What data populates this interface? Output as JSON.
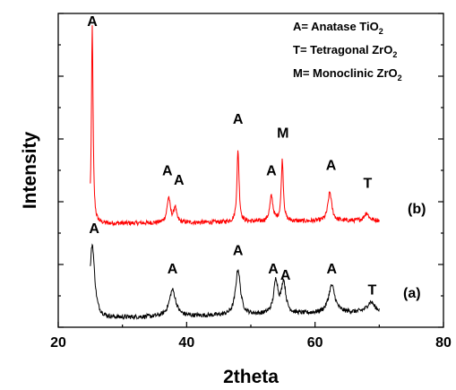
{
  "chart_data": {
    "type": "line",
    "xlabel": "2theta",
    "ylabel": "Intensity",
    "xlim": [
      20,
      80
    ],
    "ylim": [
      0,
      1000
    ],
    "x_ticks": [
      "20",
      "40",
      "60",
      "80"
    ],
    "grid": false,
    "legend_position": "top-right",
    "legend": [
      {
        "prefix": "A= Anatase TiO",
        "sub": "2"
      },
      {
        "prefix": "T= Tetragonal ZrO",
        "sub": "2"
      },
      {
        "prefix": "M= Monoclinic ZrO",
        "sub": "2"
      }
    ],
    "series": [
      {
        "name": "(b)",
        "color": "#ff0000",
        "x_range": [
          25,
          70
        ],
        "baseline": 330,
        "baseline_end": 340,
        "peaks": [
          {
            "x": 25.3,
            "height": 630,
            "width": 0.15
          },
          {
            "x": 37.2,
            "height": 80,
            "width": 0.3
          },
          {
            "x": 38.2,
            "height": 48,
            "width": 0.25
          },
          {
            "x": 48.0,
            "height": 228,
            "width": 0.2
          },
          {
            "x": 53.2,
            "height": 80,
            "width": 0.3
          },
          {
            "x": 54.9,
            "height": 195,
            "width": 0.2
          },
          {
            "x": 62.3,
            "height": 92,
            "width": 0.35
          },
          {
            "x": 68.0,
            "height": 25,
            "width": 0.4
          }
        ],
        "labels": [
          {
            "text": "A",
            "x": 25.3,
            "y": 960
          },
          {
            "text": "A",
            "x": 37.0,
            "y": 485
          },
          {
            "text": "A",
            "x": 38.8,
            "y": 455
          },
          {
            "text": "A",
            "x": 48.0,
            "y": 648
          },
          {
            "text": "M",
            "x": 55.0,
            "y": 605
          },
          {
            "text": "A",
            "x": 53.2,
            "y": 485
          },
          {
            "text": "A",
            "x": 62.5,
            "y": 502
          },
          {
            "text": "T",
            "x": 68.2,
            "y": 445
          }
        ]
      },
      {
        "name": "(a)",
        "color": "#000000",
        "x_range": [
          25,
          70
        ],
        "baseline": 28,
        "baseline_end": 48,
        "peaks": [
          {
            "x": 25.3,
            "height": 235,
            "width": 0.45
          },
          {
            "x": 37.8,
            "height": 85,
            "width": 0.6
          },
          {
            "x": 48.0,
            "height": 145,
            "width": 0.45
          },
          {
            "x": 53.9,
            "height": 105,
            "width": 0.4
          },
          {
            "x": 55.1,
            "height": 100,
            "width": 0.4
          },
          {
            "x": 62.6,
            "height": 88,
            "width": 0.6
          },
          {
            "x": 68.7,
            "height": 32,
            "width": 0.7
          }
        ],
        "labels": [
          {
            "text": "A",
            "x": 25.6,
            "y": 300
          },
          {
            "text": "A",
            "x": 37.8,
            "y": 172
          },
          {
            "text": "A",
            "x": 48.0,
            "y": 230
          },
          {
            "text": "A",
            "x": 53.5,
            "y": 172
          },
          {
            "text": "A",
            "x": 55.4,
            "y": 152
          },
          {
            "text": "A",
            "x": 62.6,
            "y": 172
          },
          {
            "text": "T",
            "x": 68.9,
            "y": 105
          }
        ]
      }
    ]
  }
}
